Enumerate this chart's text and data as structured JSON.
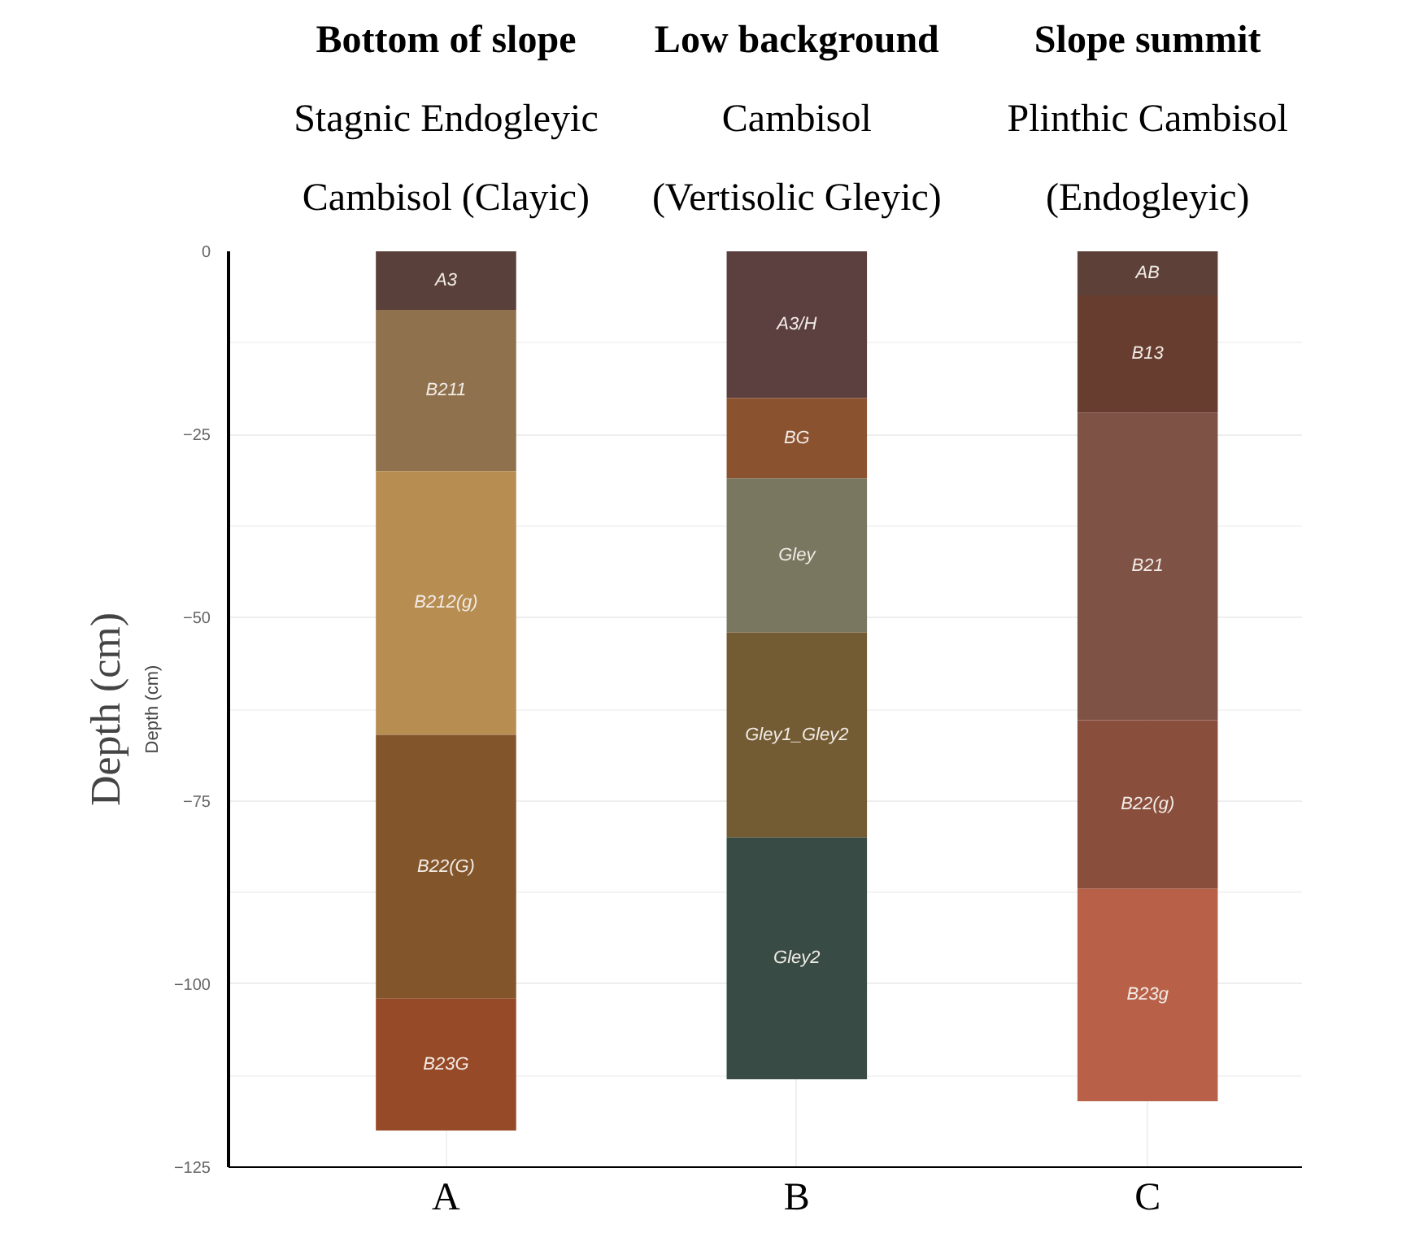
{
  "chart_data": {
    "type": "bar",
    "stacked": true,
    "ylabel": "Depth (cm)",
    "categories": [
      "A",
      "B",
      "C"
    ],
    "series": [
      {
        "name": "A3",
        "color": "#5a403a",
        "values": [
          -8,
          null,
          null
        ]
      },
      {
        "name": "B211",
        "color": "#8f714d",
        "values": [
          -22,
          null,
          null
        ]
      },
      {
        "name": "B212(g)",
        "color": "#b78d52",
        "values": [
          -36,
          null,
          null
        ]
      },
      {
        "name": "B22(G)",
        "color": "#83552a",
        "values": [
          -36,
          null,
          null
        ]
      },
      {
        "name": "B23G",
        "color": "#974a28",
        "values": [
          -18,
          null,
          null
        ]
      },
      {
        "name": "A3/H",
        "color": "#5c4040",
        "values": [
          null,
          -20,
          null
        ]
      },
      {
        "name": "BG",
        "color": "#8b5230",
        "values": [
          null,
          -11,
          null
        ]
      },
      {
        "name": "Gley",
        "color": "#7a7760",
        "values": [
          null,
          -21,
          null
        ]
      },
      {
        "name": "Gley1_Gley2",
        "color": "#735b34",
        "values": [
          null,
          -28,
          null
        ]
      },
      {
        "name": "Gley2",
        "color": "#384b45",
        "values": [
          null,
          -33,
          null
        ]
      },
      {
        "name": "AB",
        "color": "#5d4139",
        "values": [
          null,
          null,
          -6
        ]
      },
      {
        "name": "B13",
        "color": "#673d2f",
        "values": [
          null,
          null,
          -16
        ]
      },
      {
        "name": "B21",
        "color": "#7f5246",
        "values": [
          null,
          null,
          -42
        ]
      },
      {
        "name": "B22(g)",
        "color": "#8a4e3d",
        "values": [
          null,
          null,
          -23
        ]
      },
      {
        "name": "B23g",
        "color": "#b86148",
        "values": [
          null,
          null,
          -29
        ]
      }
    ],
    "ylim": [
      -125,
      0
    ],
    "yticks": [
      -125,
      -100,
      -75,
      -50,
      -25,
      0
    ],
    "grid": true,
    "annotations": [
      "Bottom of slope\nStagnic Endogleyic\nCambisol (Clayic)",
      "Low background\nCambisol\n(Vertisolic Gleyic)",
      "Slope summit\nPlinthic Cambisol\n(Endogleyic)",
      "Depth (cm)"
    ]
  }
}
